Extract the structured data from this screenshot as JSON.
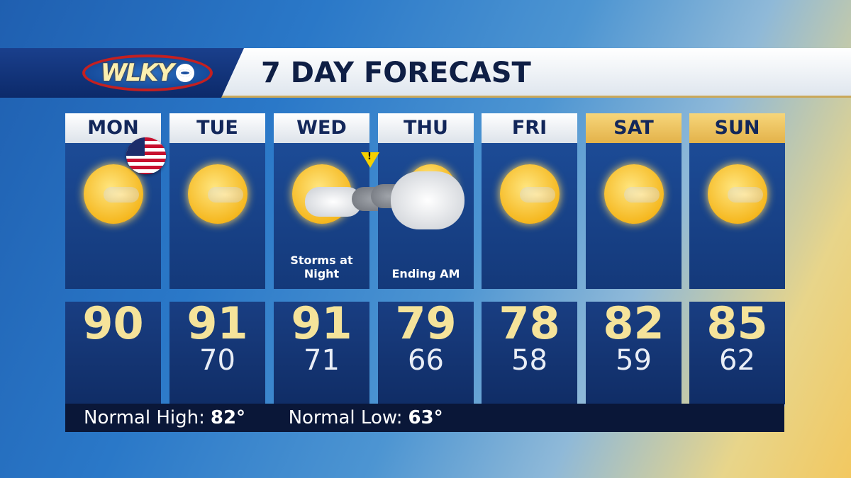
{
  "header": {
    "logo": "WLKY",
    "title": "7 DAY FORECAST"
  },
  "days": [
    {
      "day": "MON",
      "high": "90",
      "low": "",
      "note": "",
      "icon": "sunny-icon",
      "weekend": false
    },
    {
      "day": "TUE",
      "high": "91",
      "low": "70",
      "note": "",
      "icon": "sunny-icon",
      "weekend": false
    },
    {
      "day": "WED",
      "high": "91",
      "low": "71",
      "note": "Storms at Night",
      "icon": "sun-storm-icon",
      "weekend": false
    },
    {
      "day": "THU",
      "high": "79",
      "low": "66",
      "note": "Ending AM",
      "icon": "cloudy-icon",
      "weekend": false
    },
    {
      "day": "FRI",
      "high": "78",
      "low": "58",
      "note": "",
      "icon": "sunny-icon",
      "weekend": false
    },
    {
      "day": "SAT",
      "high": "82",
      "low": "59",
      "note": "",
      "icon": "sunny-icon",
      "weekend": true
    },
    {
      "day": "SUN",
      "high": "85",
      "low": "62",
      "note": "",
      "icon": "sunny-icon",
      "weekend": true
    }
  ],
  "normals": {
    "high_label": "Normal High:",
    "high": "82°",
    "low_label": "Normal Low:",
    "low": "63°"
  },
  "colors": {
    "high_temp": "#f5e39a",
    "panel": "#1c4b96",
    "weekend_header": "#f0c860"
  }
}
